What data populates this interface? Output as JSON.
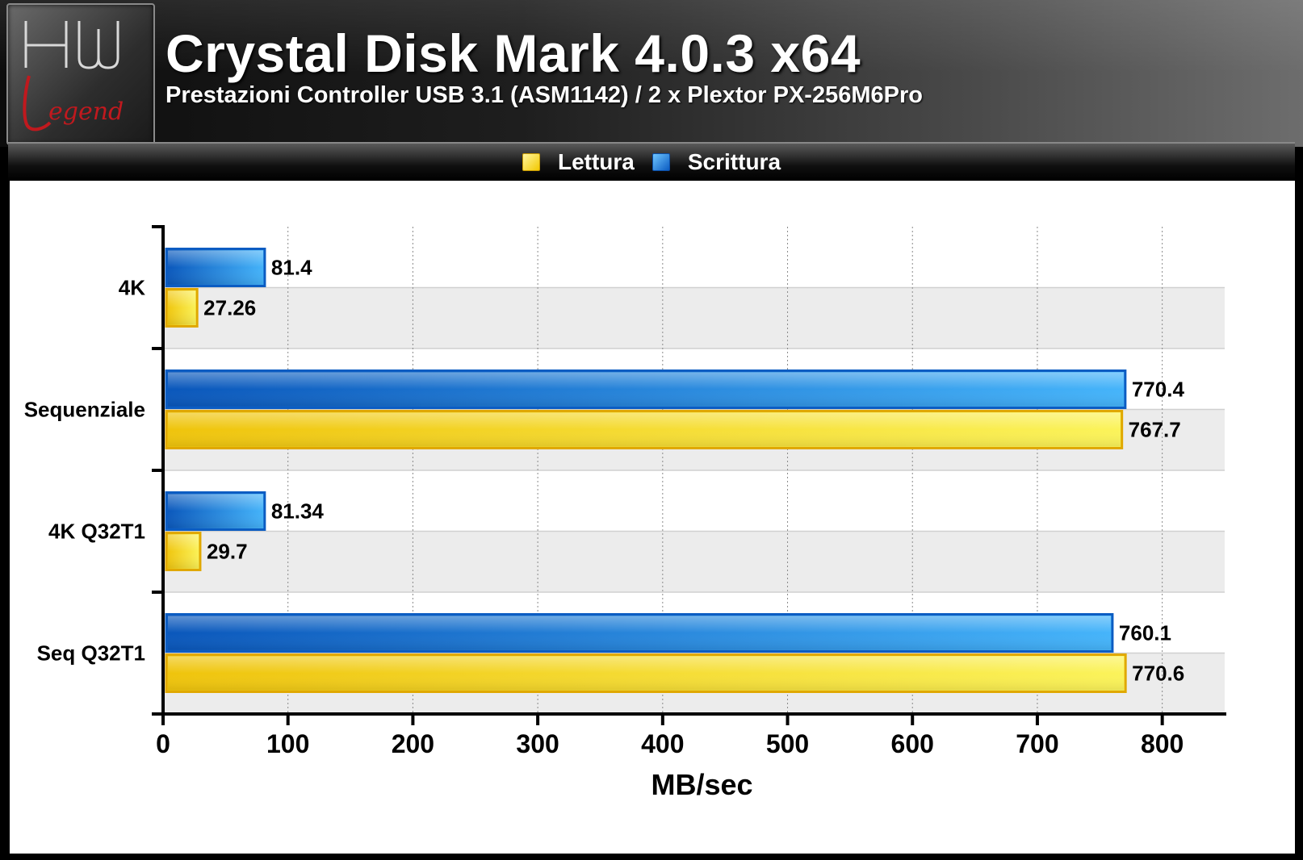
{
  "header": {
    "title": "Crystal Disk Mark 4.0.3 x64",
    "subtitle": "Prestazioni Controller USB 3.1 (ASM1142) / 2 x Plextor PX-256M6Pro",
    "logo_text_top": "HW",
    "logo_text_bottom": "Legend"
  },
  "legend": {
    "read_label": "Lettura",
    "write_label": "Scrittura"
  },
  "colors": {
    "read": "#f2c800",
    "read_light": "#fbf35a",
    "write": "#0b5cc2",
    "write_light": "#45b4fa"
  },
  "chart_data": {
    "type": "bar",
    "orientation": "horizontal",
    "title": "Crystal Disk Mark 4.0.3 x64",
    "subtitle": "Prestazioni Controller USB 3.1 (ASM1142) / 2 x Plextor PX-256M6Pro",
    "xlabel": "MB/sec",
    "ylabel": "",
    "xlim": [
      0,
      850
    ],
    "xticks": [
      0,
      100,
      200,
      300,
      400,
      500,
      600,
      700,
      800
    ],
    "grid": "vertical dotted",
    "legend_position": "top-center",
    "categories": [
      "4K",
      "Sequenziale",
      "4K Q32T1",
      "Seq Q32T1"
    ],
    "series": [
      {
        "name": "Scrittura",
        "values": [
          81.4,
          770.4,
          81.34,
          760.1
        ],
        "labels": [
          "81.4",
          "770.4",
          "81.34",
          "760.1"
        ]
      },
      {
        "name": "Lettura",
        "values": [
          27.26,
          767.7,
          29.7,
          770.6
        ],
        "labels": [
          "27.26",
          "767.7",
          "29.7",
          "770.6"
        ]
      }
    ]
  }
}
